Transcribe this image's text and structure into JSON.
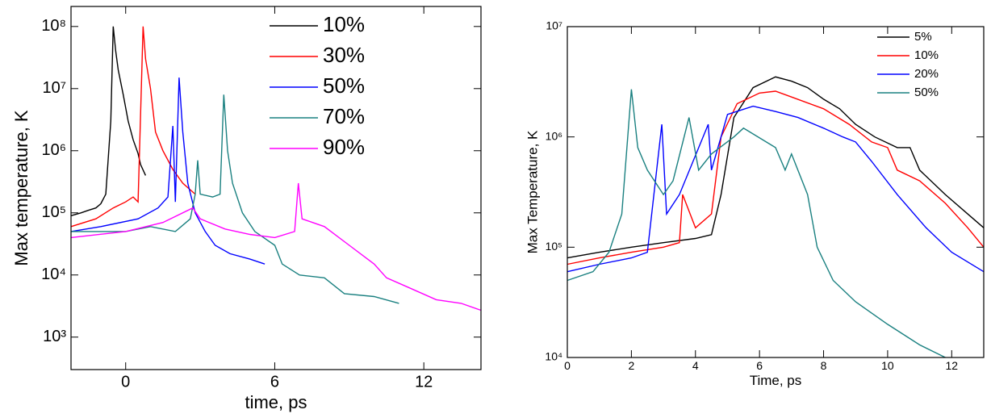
{
  "chart_data": [
    {
      "type": "line",
      "x_label": "time, ps",
      "y_label": "Max temperature, K",
      "log_y": true,
      "legend": "upper right",
      "xlim": [
        -2.2,
        14.3
      ],
      "xticks": [
        0,
        6,
        12
      ],
      "ylim": [
        300,
        210000000
      ],
      "yticks": [
        {
          "value": 1000,
          "label": "10³"
        },
        {
          "value": 10000,
          "label": "10⁴"
        },
        {
          "value": 100000,
          "label": "10⁵"
        },
        {
          "value": 1000000,
          "label": "10⁶"
        },
        {
          "value": 10000000,
          "label": "10⁷"
        },
        {
          "value": 100000000,
          "label": "10⁸"
        }
      ],
      "series": [
        {
          "name": "10%",
          "color": "#000000",
          "x": [
            -2.2,
            -1.8,
            -1.5,
            -1.2,
            -1.0,
            -0.8,
            -0.6,
            -0.5,
            -0.4,
            -0.3,
            -0.1,
            0.1,
            0.3,
            0.5,
            0.6,
            0.8
          ],
          "values": [
            90000,
            100000,
            110000,
            120000,
            140000,
            200000,
            3000000,
            100000000,
            40000000,
            20000000,
            8000000,
            3000000,
            1500000,
            900000,
            600000,
            400000
          ]
        },
        {
          "name": "30%",
          "color": "#ff0000",
          "x": [
            -2.2,
            -1.2,
            -0.5,
            0,
            0.3,
            0.5,
            0.7,
            0.8,
            1.0,
            1.2,
            1.5,
            1.9,
            2.3,
            2.8
          ],
          "values": [
            60000,
            80000,
            120000,
            150000,
            180000,
            150000,
            100000000,
            30000000,
            10000000,
            2000000,
            1000000,
            500000,
            300000,
            200000
          ]
        },
        {
          "name": "50%",
          "color": "#0000ff",
          "x": [
            -2.2,
            -1,
            0.5,
            1.3,
            1.7,
            1.9,
            2.0,
            2.15,
            2.3,
            2.5,
            2.8,
            3.2,
            3.6,
            4.2,
            5.0,
            5.6
          ],
          "values": [
            50000,
            60000,
            80000,
            120000,
            180000,
            2500000,
            150000,
            15000000,
            2000000,
            300000,
            100000,
            50000,
            30000,
            22000,
            18000,
            15000
          ]
        },
        {
          "name": "70%",
          "color": "#1a8080",
          "x": [
            -2.2,
            0,
            1,
            2,
            2.6,
            2.8,
            2.9,
            3.0,
            3.5,
            3.8,
            3.95,
            4.1,
            4.3,
            4.7,
            5.2,
            6.0,
            6.3,
            7,
            8,
            8.8,
            10,
            11
          ],
          "values": [
            50000,
            50000,
            60000,
            50000,
            80000,
            200000,
            700000,
            200000,
            180000,
            200000,
            8000000,
            1000000,
            300000,
            100000,
            50000,
            30000,
            15000,
            10000,
            9000,
            5000,
            4500,
            3500
          ]
        },
        {
          "name": "90%",
          "color": "#ff00ff",
          "x": [
            -2.2,
            0,
            1.5,
            2.7,
            3,
            4,
            5,
            6,
            6.8,
            6.95,
            7.1,
            8,
            9,
            10,
            10.5,
            11.5,
            12.5,
            13.5,
            14.3
          ],
          "values": [
            40000,
            50000,
            70000,
            120000,
            80000,
            55000,
            45000,
            40000,
            50000,
            300000,
            80000,
            60000,
            30000,
            15000,
            9000,
            6000,
            4000,
            3500,
            2700
          ]
        }
      ]
    },
    {
      "type": "line",
      "x_label": "Time, ps",
      "y_label": "Max Temperature, K",
      "log_y": true,
      "legend": "upper right",
      "xlim": [
        0,
        13
      ],
      "xticks": [
        0,
        2,
        4,
        6,
        8,
        10,
        12
      ],
      "ylim": [
        10000,
        10000000
      ],
      "yticks": [
        {
          "value": 10000,
          "label": "10⁴"
        },
        {
          "value": 100000,
          "label": "10⁵"
        },
        {
          "value": 1000000,
          "label": "10⁶"
        },
        {
          "value": 10000000,
          "label": "10⁷"
        }
      ],
      "series": [
        {
          "name": "5%",
          "color": "#000000",
          "x": [
            0,
            1,
            2,
            3,
            4,
            4.5,
            4.8,
            5.2,
            5.8,
            6.5,
            7,
            7.5,
            8,
            8.5,
            9,
            9.6,
            10.3,
            10.7,
            11,
            11.8,
            12.5,
            13
          ],
          "values": [
            80000,
            90000,
            100000,
            110000,
            120000,
            130000,
            300000,
            1500000,
            2800000,
            3500000,
            3200000,
            2800000,
            2200000,
            1800000,
            1300000,
            1000000,
            800000,
            800000,
            500000,
            300000,
            200000,
            150000
          ]
        },
        {
          "name": "10%",
          "color": "#ff0000",
          "x": [
            0,
            1,
            2,
            3,
            3.5,
            3.6,
            4,
            4.5,
            4.8,
            5.3,
            6,
            6.5,
            7,
            8,
            8.8,
            9.5,
            10,
            10.3,
            11,
            11.8,
            12.5,
            13
          ],
          "values": [
            70000,
            80000,
            90000,
            100000,
            110000,
            300000,
            150000,
            200000,
            1000000,
            2000000,
            2500000,
            2600000,
            2300000,
            1800000,
            1300000,
            900000,
            800000,
            500000,
            400000,
            250000,
            150000,
            100000
          ]
        },
        {
          "name": "20%",
          "color": "#0000ff",
          "x": [
            0,
            1,
            2,
            2.5,
            2.95,
            3.1,
            3.5,
            4.4,
            4.5,
            5,
            5.8,
            6.5,
            7.2,
            8,
            8.6,
            9,
            9.5,
            10.3,
            11.2,
            12,
            13
          ],
          "values": [
            60000,
            70000,
            80000,
            90000,
            1300000,
            200000,
            300000,
            1300000,
            500000,
            1600000,
            1900000,
            1700000,
            1500000,
            1200000,
            1000000,
            900000,
            600000,
            300000,
            150000,
            90000,
            60000
          ]
        },
        {
          "name": "50%",
          "color": "#1a8080",
          "x": [
            0,
            0.8,
            1.3,
            1.7,
            2.0,
            2.2,
            2.5,
            3,
            3.3,
            3.8,
            4.1,
            4.5,
            5.2,
            5.5,
            6.5,
            6.8,
            7,
            7.5,
            7.8,
            8.3,
            9,
            10,
            11,
            11.8
          ],
          "values": [
            50000,
            60000,
            90000,
            200000,
            2700000,
            800000,
            500000,
            300000,
            400000,
            1500000,
            500000,
            700000,
            1000000,
            1200000,
            800000,
            500000,
            700000,
            300000,
            100000,
            50000,
            32000,
            20000,
            13000,
            10000
          ]
        }
      ]
    }
  ]
}
